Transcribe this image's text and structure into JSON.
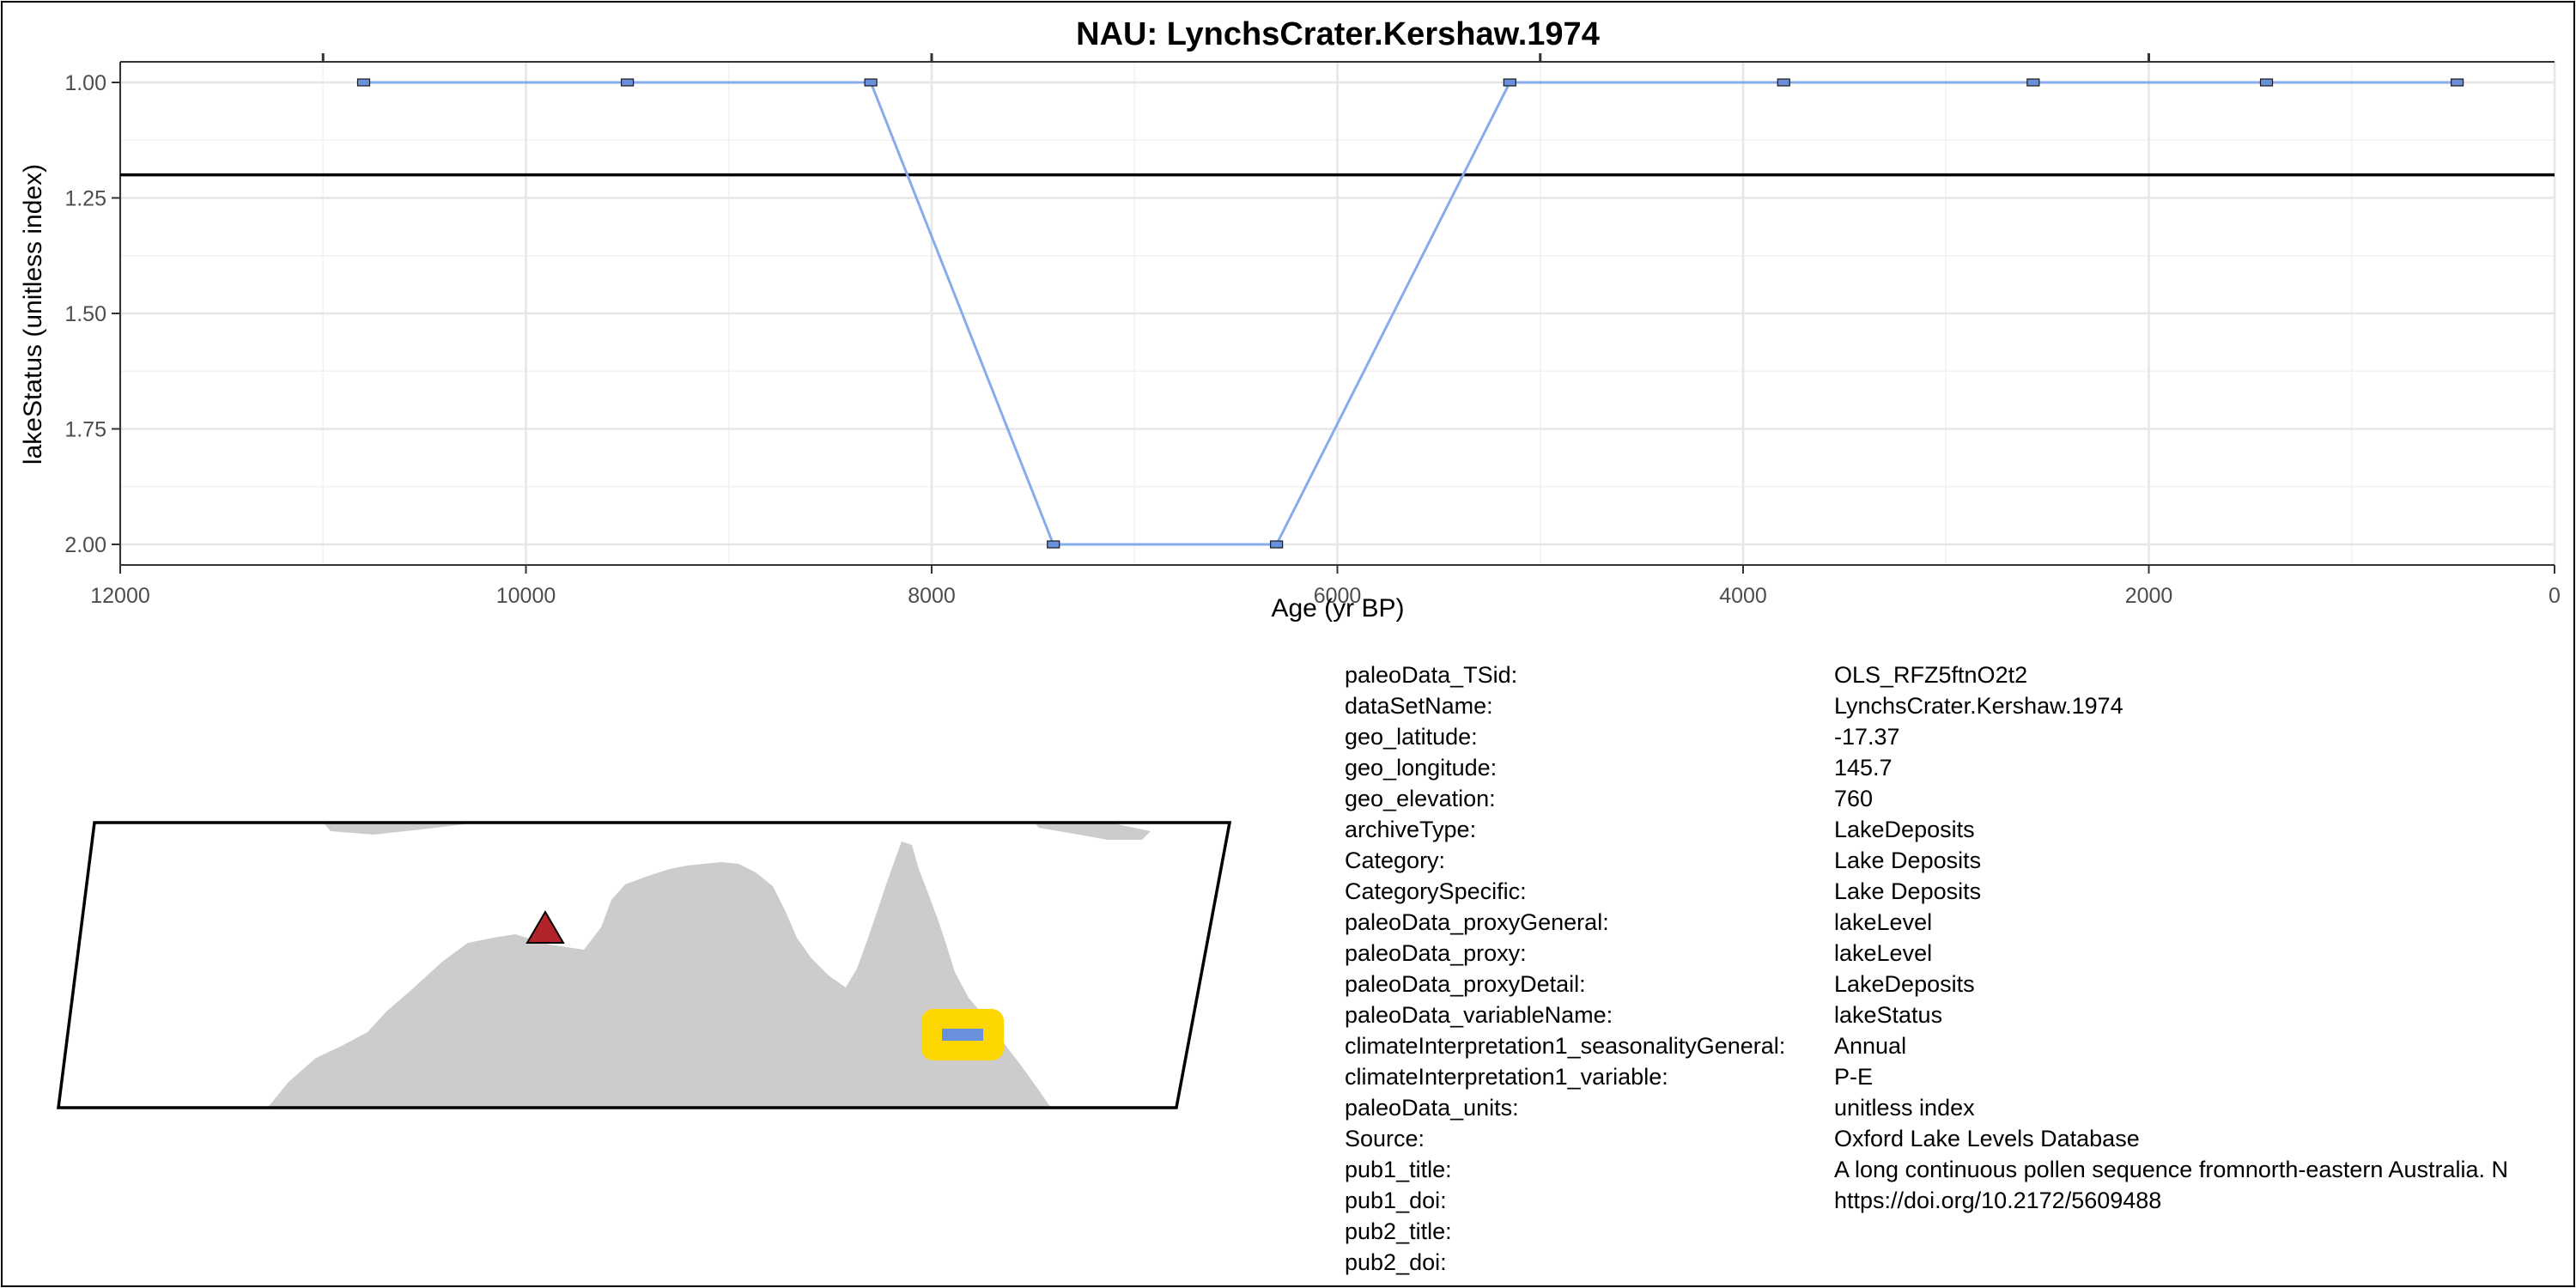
{
  "chart_data": {
    "type": "line",
    "title": "NAU: LynchsCrater.Kershaw.1974",
    "xlabel": "Age (yr BP)",
    "ylabel": "lakeStatus (unitless index)",
    "xlim": [
      12000,
      0
    ],
    "ylim": [
      2.0,
      1.0
    ],
    "x_reversed": true,
    "y_reversed": true,
    "xticks": [
      12000,
      10000,
      8000,
      6000,
      4000,
      2000,
      0
    ],
    "xtick_labels": [
      "12000",
      "10000",
      "8000",
      "6000",
      "4000",
      "2000",
      "0"
    ],
    "yticks": [
      1.0,
      1.25,
      1.5,
      1.75,
      2.0
    ],
    "ytick_labels": [
      "1.00",
      "1.25",
      "1.50",
      "1.75",
      "2.00"
    ],
    "grid": true,
    "series": [
      {
        "x": [
          10800,
          9500,
          8300,
          7400,
          6300,
          5150,
          3800,
          2570,
          1420,
          480
        ],
        "y": [
          1,
          1,
          1,
          2,
          2,
          1,
          1,
          1,
          1,
          1
        ]
      }
    ],
    "hline": 1.2,
    "line_color": "#87ACEB",
    "marker_color": "#6A8FDB"
  },
  "map": {
    "land_color": "#CCCCCC",
    "site_marker_color": "#B2242A",
    "data_marker_color": "#6A8FDB",
    "data_marker_highlight": "#FFD700"
  },
  "metadata": [
    {
      "key": "paleoData_TSid:",
      "value": "OLS_RFZ5ftnO2t2"
    },
    {
      "key": "dataSetName:",
      "value": "LynchsCrater.Kershaw.1974"
    },
    {
      "key": "geo_latitude:",
      "value": "-17.37"
    },
    {
      "key": "geo_longitude:",
      "value": "145.7"
    },
    {
      "key": "geo_elevation:",
      "value": "760"
    },
    {
      "key": "archiveType:",
      "value": "LakeDeposits"
    },
    {
      "key": "Category:",
      "value": "Lake Deposits"
    },
    {
      "key": "CategorySpecific:",
      "value": "Lake Deposits"
    },
    {
      "key": "paleoData_proxyGeneral:",
      "value": "lakeLevel"
    },
    {
      "key": "paleoData_proxy:",
      "value": "lakeLevel"
    },
    {
      "key": "paleoData_proxyDetail:",
      "value": "LakeDeposits"
    },
    {
      "key": "paleoData_variableName:",
      "value": "lakeStatus"
    },
    {
      "key": "climateInterpretation1_seasonalityGeneral:",
      "value": "Annual"
    },
    {
      "key": "climateInterpretation1_variable:",
      "value": "P-E"
    },
    {
      "key": "paleoData_units:",
      "value": "unitless index"
    },
    {
      "key": "Source:",
      "value": "Oxford Lake Levels Database"
    },
    {
      "key": "pub1_title:",
      "value": "A long continuous pollen sequence fromnorth-eastern Australia. N"
    },
    {
      "key": "pub1_doi:",
      "value": "https://doi.org/10.2172/5609488"
    },
    {
      "key": "pub2_title:",
      "value": ""
    },
    {
      "key": "pub2_doi:",
      "value": ""
    }
  ]
}
